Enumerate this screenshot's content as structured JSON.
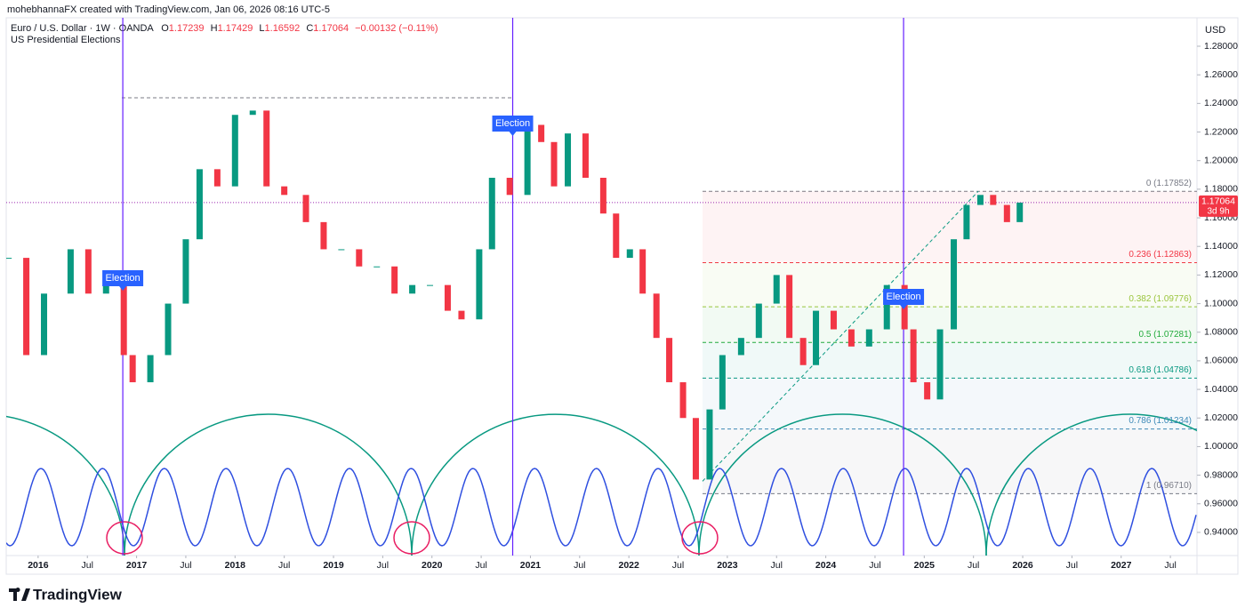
{
  "header": {
    "credit": "mohebhannaFX created with TradingView.com, Jan 06, 2026 08:16 UTC-5",
    "symbol": "Euro / U.S. Dollar · 1W · OANDA",
    "ohlc": [
      {
        "label": "O",
        "value": "1.17239"
      },
      {
        "label": "H",
        "value": "1.17429"
      },
      {
        "label": "L",
        "value": "1.16592"
      },
      {
        "label": "C",
        "value": "1.17064"
      }
    ],
    "change": "−0.00132 (−0.11%)",
    "indicator": "US Presidential Elections"
  },
  "chart_data": {
    "type": "candlestick",
    "currency": "USD",
    "countdown": "3d 9h",
    "up_color": "#089981",
    "down_color": "#f23645",
    "grid": false,
    "x": [
      2015.7,
      2015.88,
      2016.06,
      2016.33,
      2016.51,
      2016.69,
      2016.87,
      2016.96,
      2017.14,
      2017.32,
      2017.5,
      2017.64,
      2017.82,
      2018.0,
      2018.18,
      2018.32,
      2018.5,
      2018.72,
      2018.9,
      2019.08,
      2019.26,
      2019.44,
      2019.62,
      2019.8,
      2019.98,
      2020.16,
      2020.3,
      2020.48,
      2020.61,
      2020.79,
      2020.97,
      2021.11,
      2021.24,
      2021.38,
      2021.56,
      2021.74,
      2021.87,
      2022.01,
      2022.14,
      2022.28,
      2022.41,
      2022.55,
      2022.68,
      2022.82,
      2022.95,
      2023.14,
      2023.32,
      2023.5,
      2023.63,
      2023.77,
      2023.9,
      2024.08,
      2024.26,
      2024.44,
      2024.62,
      2024.8,
      2024.89,
      2025.03,
      2025.16,
      2025.3,
      2025.43,
      2025.57,
      2025.7,
      2025.84,
      2025.97
    ],
    "close": [
      1.132,
      1.064,
      1.107,
      1.138,
      1.107,
      1.12,
      1.064,
      1.045,
      1.064,
      1.1,
      1.145,
      1.194,
      1.182,
      1.232,
      1.235,
      1.182,
      1.176,
      1.157,
      1.138,
      1.138,
      1.126,
      1.126,
      1.107,
      1.113,
      1.113,
      1.095,
      1.089,
      1.138,
      1.188,
      1.176,
      1.225,
      1.213,
      1.182,
      1.219,
      1.188,
      1.163,
      1.132,
      1.138,
      1.107,
      1.076,
      1.045,
      1.02,
      0.977,
      1.026,
      1.064,
      1.076,
      1.1,
      1.12,
      1.076,
      1.057,
      1.095,
      1.082,
      1.07,
      1.082,
      1.113,
      1.082,
      1.045,
      1.033,
      1.082,
      1.145,
      1.169,
      1.176,
      1.169,
      1.157,
      1.17064
    ],
    "xlim": [
      2015.676,
      2027.77
    ],
    "xticks": [
      2016,
      {
        "value": 2016.5,
        "label": "Jul"
      },
      2017,
      {
        "value": 2017.5,
        "label": "Jul"
      },
      2018,
      {
        "value": 2018.5,
        "label": "Jul"
      },
      2019,
      {
        "value": 2019.5,
        "label": "Jul"
      },
      2020,
      {
        "value": 2020.5,
        "label": "Jul"
      },
      2021,
      {
        "value": 2021.5,
        "label": "Jul"
      },
      2022,
      {
        "value": 2022.5,
        "label": "Jul"
      },
      2023,
      {
        "value": 2023.5,
        "label": "Jul"
      },
      2024,
      {
        "value": 2024.5,
        "label": "Jul"
      },
      2025,
      {
        "value": 2025.5,
        "label": "Jul"
      },
      2026,
      {
        "value": 2026.5,
        "label": "Jul"
      },
      2027,
      {
        "value": 2027.5,
        "label": "Jul"
      }
    ],
    "ylim": [
      0.9238,
      1.2999
    ],
    "yticks": [
      {
        "value": 0.94,
        "label": "0.94000"
      },
      {
        "value": 0.96,
        "label": "0.96000"
      },
      {
        "value": 0.98,
        "label": "0.98000"
      },
      {
        "value": 1.0,
        "label": "1.00000"
      },
      {
        "value": 1.02,
        "label": "1.02000"
      },
      {
        "value": 1.04,
        "label": "1.04000"
      },
      {
        "value": 1.06,
        "label": "1.06000"
      },
      {
        "value": 1.08,
        "label": "1.08000"
      },
      {
        "value": 1.1,
        "label": "1.10000"
      },
      {
        "value": 1.12,
        "label": "1.12000"
      },
      {
        "value": 1.14,
        "label": "1.14000"
      },
      {
        "value": 1.16,
        "label": "1.16000"
      },
      {
        "value": 1.18,
        "label": "1.18000"
      },
      {
        "value": 1.2,
        "label": "1.20000"
      },
      {
        "value": 1.22,
        "label": "1.22000"
      },
      {
        "value": 1.24,
        "label": "1.24000"
      },
      {
        "value": 1.26,
        "label": "1.26000"
      },
      {
        "value": 1.28,
        "label": "1.28000"
      }
    ],
    "events": [
      {
        "label": "Election",
        "x": 2016.86
      },
      {
        "label": "Election",
        "x": 2020.82
      },
      {
        "label": "Election",
        "x": 2024.79
      }
    ],
    "fib_levels": [
      {
        "label": "0 (1.17852)",
        "value": 1.17852,
        "color": "#787b86"
      },
      {
        "label": "0.236 (1.12863)",
        "value": 1.12863,
        "color": "#f23645"
      },
      {
        "label": "0.382 (1.09776)",
        "value": 1.09776,
        "color": "#9bc53d"
      },
      {
        "label": "0.5 (1.07281)",
        "value": 1.07281,
        "color": "#22ab3b"
      },
      {
        "label": "0.618 (1.04786)",
        "value": 1.04786,
        "color": "#089981"
      },
      {
        "label": "0.786 (1.01234)",
        "value": 1.01234,
        "color": "#3d8ab8"
      },
      {
        "label": "1 (0.96710)",
        "value": 0.9671,
        "color": "#787b86"
      }
    ]
  },
  "footer": {
    "brand": "TradingView"
  }
}
